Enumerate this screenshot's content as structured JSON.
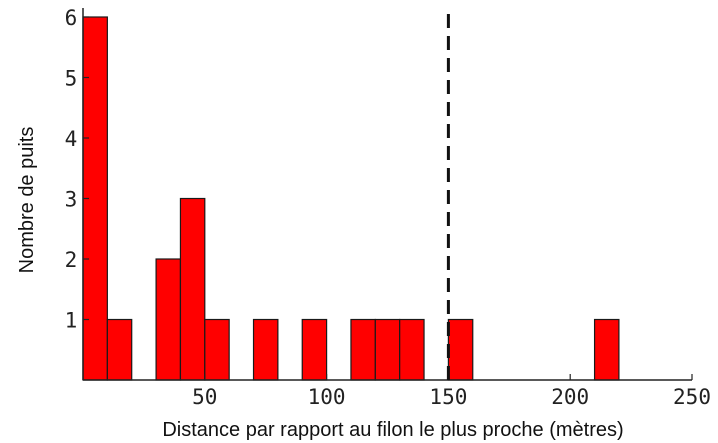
{
  "chart_data": {
    "type": "bar",
    "title": "",
    "xlabel": "Distance par rapport au filon le plus proche (mètres)",
    "ylabel": "Nombre de puits",
    "xlim": [
      0,
      250
    ],
    "ylim": [
      0,
      6
    ],
    "bin_width": 10,
    "bins": [
      {
        "x0": 0,
        "x1": 10,
        "count": 6
      },
      {
        "x0": 10,
        "x1": 20,
        "count": 1
      },
      {
        "x0": 30,
        "x1": 40,
        "count": 2
      },
      {
        "x0": 40,
        "x1": 50,
        "count": 3
      },
      {
        "x0": 50,
        "x1": 60,
        "count": 1
      },
      {
        "x0": 70,
        "x1": 80,
        "count": 1
      },
      {
        "x0": 90,
        "x1": 100,
        "count": 1
      },
      {
        "x0": 110,
        "x1": 120,
        "count": 1
      },
      {
        "x0": 120,
        "x1": 130,
        "count": 1
      },
      {
        "x0": 130,
        "x1": 140,
        "count": 1
      },
      {
        "x0": 150,
        "x1": 160,
        "count": 1
      },
      {
        "x0": 210,
        "x1": 220,
        "count": 1
      }
    ],
    "reference_line": {
      "x": 150,
      "style": "dashed",
      "color": "#111111"
    },
    "x_ticks": [
      50,
      100,
      150,
      200,
      250
    ],
    "y_ticks": [
      1,
      2,
      3,
      4,
      5,
      6
    ],
    "bar_color": "#ff0000",
    "bar_edge_color": "#1a1a1a",
    "grid": false,
    "legend": "none"
  }
}
